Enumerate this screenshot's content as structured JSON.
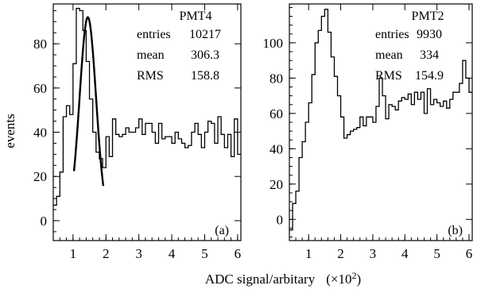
{
  "figure": {
    "ylabel": "events",
    "xlabel": "ADC signal/arbitary",
    "xlabel_unit_prefix": "(×10",
    "xlabel_unit_exp": "2",
    "xlabel_unit_suffix": ")"
  },
  "chart_data": [
    {
      "type": "histogram",
      "panel_tag": "(a)",
      "title": "PMT4",
      "stats": [
        {
          "label": "entries",
          "value": "10217"
        },
        {
          "label": "mean",
          "value": "306.3"
        },
        {
          "label": "RMS",
          "value": "158.8"
        }
      ],
      "xlim": [
        0.4,
        6.1
      ],
      "ylim": [
        -9,
        98
      ],
      "xticks": [
        1,
        2,
        3,
        4,
        5,
        6
      ],
      "xtick_labels": [
        "1",
        "2",
        "3",
        "4",
        "5",
        "6"
      ],
      "yticks": [
        0,
        20,
        40,
        60,
        80
      ],
      "ytick_labels": [
        "0",
        "20",
        "40",
        "60",
        "80"
      ],
      "bin_edges": [
        0.4,
        0.5,
        0.6,
        0.7,
        0.8,
        0.9,
        1.0,
        1.1,
        1.2,
        1.3,
        1.4,
        1.5,
        1.6,
        1.7,
        1.8,
        1.9,
        2.0,
        2.1,
        2.2,
        2.3,
        2.4,
        2.5,
        2.6,
        2.7,
        2.8,
        2.9,
        3.0,
        3.1,
        3.2,
        3.3,
        3.4,
        3.5,
        3.6,
        3.7,
        3.8,
        3.9,
        4.0,
        4.1,
        4.2,
        4.3,
        4.4,
        4.5,
        4.6,
        4.7,
        4.8,
        4.9,
        5.0,
        5.1,
        5.2,
        5.3,
        5.4,
        5.5,
        5.6,
        5.7,
        5.8,
        5.9,
        6.0,
        6.1
      ],
      "counts": [
        7,
        11,
        22,
        47,
        52,
        48,
        71,
        96,
        95,
        86,
        72,
        55,
        40,
        31,
        28,
        24,
        38,
        29,
        46,
        39,
        38,
        39,
        42,
        40,
        40,
        42,
        46,
        39,
        44,
        44,
        40,
        35,
        44,
        37,
        38,
        38,
        35,
        40,
        37,
        35,
        33,
        34,
        40,
        44,
        39,
        33,
        40,
        45,
        44,
        35,
        47,
        39,
        33,
        39,
        29,
        46,
        30
      ],
      "fit": {
        "shape": "gaussian",
        "amplitude": 92,
        "mean": 1.45,
        "sigma": 0.25,
        "x_range": [
          1.03,
          1.92
        ]
      }
    },
    {
      "type": "histogram",
      "panel_tag": "(b)",
      "title": "PMT2",
      "stats": [
        {
          "label": "entries",
          "value": "9930"
        },
        {
          "label": "mean",
          "value": "334"
        },
        {
          "label": "RMS",
          "value": "154.9"
        }
      ],
      "xlim": [
        0.4,
        6.1
      ],
      "ylim": [
        -12,
        122
      ],
      "xticks": [
        1,
        2,
        3,
        4,
        5,
        6
      ],
      "xtick_labels": [
        "1",
        "2",
        "3",
        "4",
        "5",
        "6"
      ],
      "yticks": [
        0,
        20,
        40,
        60,
        80,
        100
      ],
      "ytick_labels": [
        "0",
        "20",
        "40",
        "60",
        "80",
        "100"
      ],
      "bin_edges": [
        0.4,
        0.5,
        0.6,
        0.7,
        0.8,
        0.9,
        1.0,
        1.1,
        1.2,
        1.3,
        1.4,
        1.5,
        1.6,
        1.7,
        1.8,
        1.9,
        2.0,
        2.1,
        2.2,
        2.3,
        2.4,
        2.5,
        2.6,
        2.7,
        2.8,
        2.9,
        3.0,
        3.1,
        3.2,
        3.3,
        3.4,
        3.5,
        3.6,
        3.7,
        3.8,
        3.9,
        4.0,
        4.1,
        4.2,
        4.3,
        4.4,
        4.5,
        4.6,
        4.7,
        4.8,
        4.9,
        5.0,
        5.1,
        5.2,
        5.3,
        5.4,
        5.5,
        5.6,
        5.7,
        5.8,
        5.9,
        6.0,
        6.1
      ],
      "counts": [
        -6,
        9,
        16,
        35,
        44,
        55,
        66,
        82,
        100,
        107,
        115,
        119,
        106,
        92,
        81,
        70,
        58,
        46,
        48,
        50,
        51,
        52,
        58,
        53,
        58,
        58,
        55,
        64,
        80,
        70,
        57,
        65,
        64,
        62,
        67,
        69,
        68,
        71,
        65,
        72,
        68,
        72,
        60,
        74,
        65,
        68,
        66,
        64,
        67,
        63,
        68,
        72,
        72,
        77,
        90,
        80,
        72
      ]
    }
  ]
}
